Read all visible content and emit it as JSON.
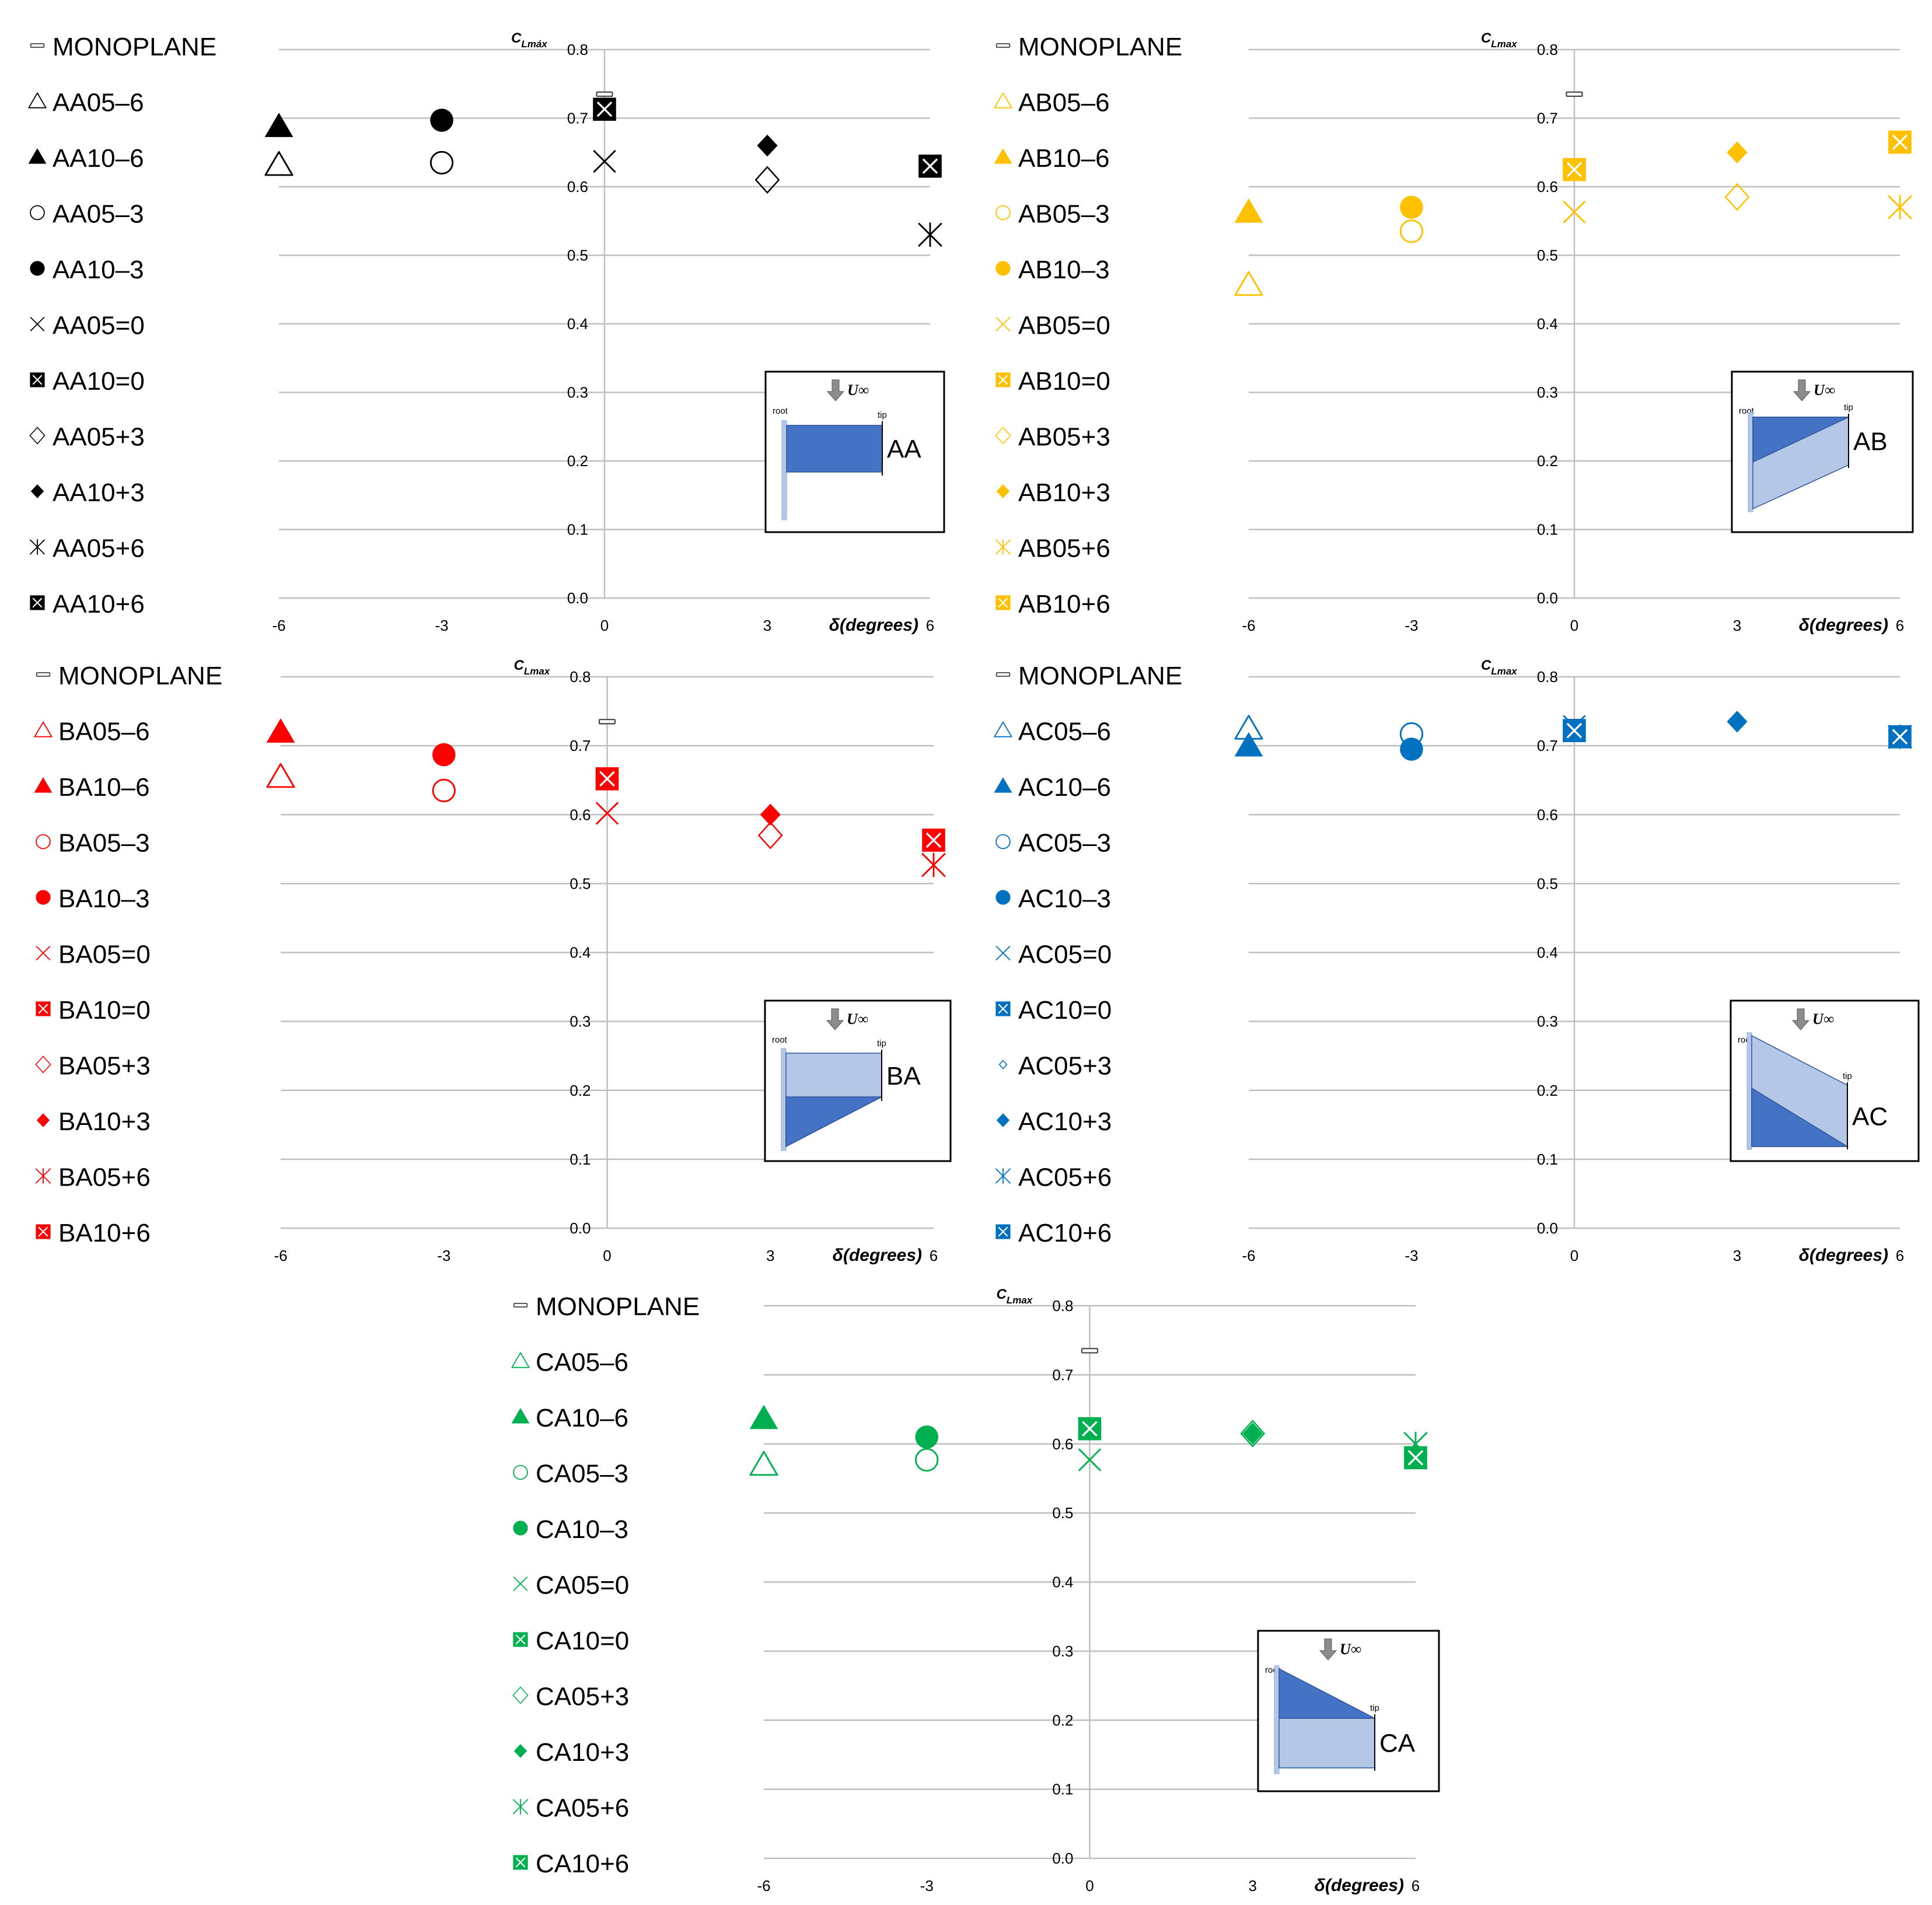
{
  "chart_data": [
    {
      "id": "AA",
      "type": "scatter",
      "color": "#000000",
      "y_label": "C_Lmáx",
      "y_main": "C",
      "y_sub": "Lmáx",
      "x_label": "δ(degrees)",
      "x_ticks": [
        -6,
        -3,
        0,
        3,
        6
      ],
      "ylim": [
        0.0,
        0.8
      ],
      "y_ticks": [
        0.0,
        0.1,
        0.2,
        0.3,
        0.4,
        0.5,
        0.6,
        0.7,
        0.8
      ],
      "grid": true,
      "inset": {
        "label": "AA",
        "root": "root",
        "tip": "tip",
        "flow": "U∞",
        "shape": "rect"
      },
      "series": [
        {
          "name": "MONOPLANE",
          "marker": "dash",
          "x": 0,
          "y": 0.735
        },
        {
          "name": "AA05–6",
          "marker": "triangle-open",
          "x": -6,
          "y": 0.632
        },
        {
          "name": "AA10–6",
          "marker": "triangle-filled",
          "x": -6,
          "y": 0.688
        },
        {
          "name": "AA05–3",
          "marker": "circle-open",
          "x": -3,
          "y": 0.635
        },
        {
          "name": "AA10–3",
          "marker": "circle-filled",
          "x": -3,
          "y": 0.697
        },
        {
          "name": "AA05=0",
          "marker": "x",
          "x": 0,
          "y": 0.637
        },
        {
          "name": "AA10=0",
          "marker": "boxx",
          "x": 0,
          "y": 0.713
        },
        {
          "name": "AA05+3",
          "marker": "diamond-open",
          "x": 3,
          "y": 0.61
        },
        {
          "name": "AA10+3",
          "marker": "diamond-filled",
          "x": 3,
          "y": 0.66
        },
        {
          "name": "AA05+6",
          "marker": "asterisk",
          "x": 6,
          "y": 0.53
        },
        {
          "name": "AA10+6",
          "marker": "boxx",
          "x": 6,
          "y": 0.63
        }
      ]
    },
    {
      "id": "AB",
      "type": "scatter",
      "color": "#FFC000",
      "y_label": "C_Lmax",
      "y_main": "C",
      "y_sub": "Lmax",
      "x_label": "δ(degrees)",
      "x_ticks": [
        -6,
        -3,
        0,
        3,
        6
      ],
      "ylim": [
        0.0,
        0.8
      ],
      "y_ticks": [
        0.0,
        0.1,
        0.2,
        0.3,
        0.4,
        0.5,
        0.6,
        0.7,
        0.8
      ],
      "grid": true,
      "inset": {
        "label": "AB",
        "root": "root",
        "tip": "tip",
        "flow": "U∞",
        "shape": "ab"
      },
      "series": [
        {
          "name": "MONOPLANE",
          "marker": "dash",
          "x": 0,
          "y": 0.735
        },
        {
          "name": "AB05–6",
          "marker": "triangle-open",
          "x": -6,
          "y": 0.457
        },
        {
          "name": "AB10–6",
          "marker": "triangle-filled",
          "x": -6,
          "y": 0.563
        },
        {
          "name": "AB05–3",
          "marker": "circle-open",
          "x": -3,
          "y": 0.535
        },
        {
          "name": "AB10–3",
          "marker": "circle-filled",
          "x": -3,
          "y": 0.57
        },
        {
          "name": "AB05=0",
          "marker": "x",
          "x": 0,
          "y": 0.563
        },
        {
          "name": "AB10=0",
          "marker": "boxx",
          "x": 0,
          "y": 0.625
        },
        {
          "name": "AB05+3",
          "marker": "diamond-open",
          "x": 3,
          "y": 0.585
        },
        {
          "name": "AB10+3",
          "marker": "diamond-filled",
          "x": 3,
          "y": 0.65
        },
        {
          "name": "AB05+6",
          "marker": "asterisk",
          "x": 6,
          "y": 0.57
        },
        {
          "name": "AB10+6",
          "marker": "boxx",
          "x": 6,
          "y": 0.665
        }
      ]
    },
    {
      "id": "BA",
      "type": "scatter",
      "color": "#FF0000",
      "y_label": "C_Lmax",
      "y_main": "C",
      "y_sub": "Lmax",
      "x_label": "δ(degrees)",
      "x_ticks": [
        -6,
        -3,
        0,
        3,
        6
      ],
      "ylim": [
        0.0,
        0.8
      ],
      "y_ticks": [
        0.0,
        0.1,
        0.2,
        0.3,
        0.4,
        0.5,
        0.6,
        0.7,
        0.8
      ],
      "grid": true,
      "inset": {
        "label": "BA",
        "root": "root",
        "tip": "tip",
        "flow": "U∞",
        "shape": "ba"
      },
      "series": [
        {
          "name": "MONOPLANE",
          "marker": "dash",
          "x": 0,
          "y": 0.735
        },
        {
          "name": "BA05–6",
          "marker": "triangle-open",
          "x": -6,
          "y": 0.655
        },
        {
          "name": "BA10–6",
          "marker": "triangle-filled",
          "x": -6,
          "y": 0.72
        },
        {
          "name": "BA05–3",
          "marker": "circle-open",
          "x": -3,
          "y": 0.635
        },
        {
          "name": "BA10–3",
          "marker": "circle-filled",
          "x": -3,
          "y": 0.687
        },
        {
          "name": "BA05=0",
          "marker": "x",
          "x": 0,
          "y": 0.602
        },
        {
          "name": "BA10=0",
          "marker": "boxx",
          "x": 0,
          "y": 0.652
        },
        {
          "name": "BA05+3",
          "marker": "diamond-open",
          "x": 3,
          "y": 0.57
        },
        {
          "name": "BA10+3",
          "marker": "diamond-filled",
          "x": 3,
          "y": 0.6
        },
        {
          "name": "BA05+6",
          "marker": "asterisk",
          "x": 6,
          "y": 0.527
        },
        {
          "name": "BA10+6",
          "marker": "boxx",
          "x": 6,
          "y": 0.563
        }
      ]
    },
    {
      "id": "AC",
      "type": "scatter",
      "color": "#0070C0",
      "y_label": "C_Lmax",
      "y_main": "C",
      "y_sub": "Lmax",
      "x_label": "δ(degrees)",
      "x_ticks": [
        -6,
        -3,
        0,
        3,
        6
      ],
      "ylim": [
        0.0,
        0.8
      ],
      "y_ticks": [
        0.0,
        0.1,
        0.2,
        0.3,
        0.4,
        0.5,
        0.6,
        0.7,
        0.8
      ],
      "grid": true,
      "inset": {
        "label": "AC",
        "root": "root",
        "tip": "tip",
        "flow": "U∞",
        "shape": "ac"
      },
      "series": [
        {
          "name": "MONOPLANE",
          "marker": "dash",
          "x": 0,
          "y": 0.735
        },
        {
          "name": "AC05–6",
          "marker": "triangle-open",
          "x": -6,
          "y": 0.725
        },
        {
          "name": "AC10–6",
          "marker": "triangle-filled",
          "x": -6,
          "y": 0.7
        },
        {
          "name": "AC05–3",
          "marker": "circle-open",
          "x": -3,
          "y": 0.717
        },
        {
          "name": "AC10–3",
          "marker": "circle-filled",
          "x": -3,
          "y": 0.695
        },
        {
          "name": "AC05=0",
          "marker": "x",
          "x": 0,
          "y": 0.728
        },
        {
          "name": "AC10=0",
          "marker": "boxx",
          "x": 0,
          "y": 0.722
        },
        {
          "name": "AC05+3",
          "marker": "diamond-small",
          "x": 3,
          "y": 0.735
        },
        {
          "name": "AC10+3",
          "marker": "diamond-filled",
          "x": 3,
          "y": 0.735
        },
        {
          "name": "AC05+6",
          "marker": "asterisk",
          "x": 6,
          "y": 0.713
        },
        {
          "name": "AC10+6",
          "marker": "boxx",
          "x": 6,
          "y": 0.713
        }
      ]
    },
    {
      "id": "CA",
      "type": "scatter",
      "color": "#00B050",
      "y_label": "C_Lmax",
      "y_main": "C",
      "y_sub": "Lmax",
      "x_label": "δ(degrees)",
      "x_ticks": [
        -6,
        -3,
        0,
        3,
        6
      ],
      "ylim": [
        0.0,
        0.8
      ],
      "y_ticks": [
        0.0,
        0.1,
        0.2,
        0.3,
        0.4,
        0.5,
        0.6,
        0.7,
        0.8
      ],
      "grid": true,
      "inset": {
        "label": "CA",
        "root": "root",
        "tip": "tip",
        "flow": "U∞",
        "shape": "ca"
      },
      "series": [
        {
          "name": "MONOPLANE",
          "marker": "dash",
          "x": 0,
          "y": 0.735
        },
        {
          "name": "CA05–6",
          "marker": "triangle-open",
          "x": -6,
          "y": 0.57
        },
        {
          "name": "CA10–6",
          "marker": "triangle-filled",
          "x": -6,
          "y": 0.637
        },
        {
          "name": "CA05–3",
          "marker": "circle-open",
          "x": -3,
          "y": 0.577
        },
        {
          "name": "CA10–3",
          "marker": "circle-filled",
          "x": -3,
          "y": 0.61
        },
        {
          "name": "CA05=0",
          "marker": "x",
          "x": 0,
          "y": 0.577
        },
        {
          "name": "CA10=0",
          "marker": "boxx",
          "x": 0,
          "y": 0.622
        },
        {
          "name": "CA05+3",
          "marker": "diamond-open",
          "x": 3,
          "y": 0.615
        },
        {
          "name": "CA10+3",
          "marker": "diamond-filled",
          "x": 3,
          "y": 0.615
        },
        {
          "name": "CA05+6",
          "marker": "asterisk",
          "x": 6,
          "y": 0.6
        },
        {
          "name": "CA10+6",
          "marker": "boxx",
          "x": 6,
          "y": 0.58
        }
      ]
    }
  ]
}
